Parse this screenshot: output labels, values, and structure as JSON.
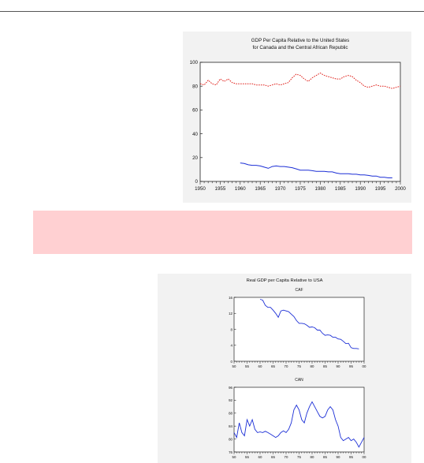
{
  "chart_data": [
    {
      "type": "line",
      "title": "GDP Per Capita Relative to the United States",
      "subtitle": "for Canada and the Central African Republic",
      "xlim": [
        1950,
        2000
      ],
      "ylim": [
        0,
        100
      ],
      "xticks": [
        1950,
        1955,
        1960,
        1965,
        1970,
        1975,
        1980,
        1985,
        1990,
        1995,
        2000
      ],
      "yticks": [
        0,
        20,
        40,
        60,
        80,
        100
      ],
      "grid": false,
      "colors": {
        "canada": "#e0201a",
        "caf": "#1c2fd6"
      },
      "series": [
        {
          "key": "canada",
          "style": "dotted",
          "x": [
            1950,
            1951,
            1952,
            1953,
            1954,
            1955,
            1956,
            1957,
            1958,
            1959,
            1960,
            1961,
            1962,
            1963,
            1964,
            1965,
            1966,
            1967,
            1968,
            1969,
            1970,
            1971,
            1972,
            1973,
            1974,
            1975,
            1976,
            1977,
            1978,
            1979,
            1980,
            1981,
            1982,
            1983,
            1984,
            1985,
            1986,
            1987,
            1988,
            1989,
            1990,
            1991,
            1992,
            1993,
            1994,
            1995,
            1996,
            1997,
            1998,
            1999,
            2000
          ],
          "y": [
            82,
            81,
            85,
            82,
            81,
            86,
            84,
            86,
            83,
            82,
            82,
            82,
            82,
            82,
            81,
            81,
            81,
            80,
            81,
            82,
            81,
            82,
            83,
            87,
            90,
            89,
            86,
            84,
            87,
            89,
            91,
            89,
            88,
            87,
            86,
            86,
            88,
            89,
            88,
            85,
            83,
            80,
            79,
            80,
            81,
            80,
            80,
            79,
            78,
            79,
            80
          ]
        },
        {
          "key": "caf",
          "style": "solid",
          "x": [
            1960,
            1961,
            1962,
            1963,
            1964,
            1965,
            1966,
            1967,
            1968,
            1969,
            1970,
            1971,
            1972,
            1973,
            1974,
            1975,
            1976,
            1977,
            1978,
            1979,
            1980,
            1981,
            1982,
            1983,
            1984,
            1985,
            1986,
            1987,
            1988,
            1989,
            1990,
            1991,
            1992,
            1993,
            1994,
            1995,
            1996,
            1997,
            1998
          ],
          "y": [
            15.5,
            15,
            14,
            13.5,
            13.5,
            13,
            12,
            11,
            12.5,
            13,
            12.5,
            12.5,
            12,
            11.5,
            10.5,
            9.5,
            9.5,
            9.5,
            9,
            8.5,
            8.5,
            8.5,
            8,
            8,
            7,
            6.5,
            6.5,
            6.5,
            6,
            6,
            5.5,
            5.5,
            5,
            4.5,
            4.5,
            3.5,
            3.5,
            3,
            3
          ]
        }
      ]
    },
    {
      "type": "line",
      "title": "Real GDP per Capita Relative to USA",
      "color": "#1c2fd6",
      "panels": [
        {
          "label": "CAF",
          "ylim": [
            0,
            16
          ],
          "yticks": [
            0,
            4,
            8,
            12,
            16
          ],
          "xlim": [
            1950,
            2000
          ],
          "xtick_labels": [
            "50",
            "55",
            "60",
            "65",
            "70",
            "75",
            "80",
            "85",
            "90",
            "95",
            "00"
          ],
          "x": [
            1960,
            1961,
            1962,
            1963,
            1964,
            1965,
            1966,
            1967,
            1968,
            1969,
            1970,
            1971,
            1972,
            1973,
            1974,
            1975,
            1976,
            1977,
            1978,
            1979,
            1980,
            1981,
            1982,
            1983,
            1984,
            1985,
            1986,
            1987,
            1988,
            1989,
            1990,
            1991,
            1992,
            1993,
            1994,
            1995,
            1996,
            1997,
            1998
          ],
          "y": [
            15.5,
            15.3,
            14,
            13.5,
            13.5,
            12.8,
            12,
            11,
            12.6,
            12.8,
            12.6,
            12.4,
            11.8,
            11.2,
            10.2,
            9.5,
            9.5,
            9.4,
            9,
            8.5,
            8.6,
            8.4,
            7.8,
            7.8,
            7,
            6.5,
            6.6,
            6.5,
            6,
            6,
            5.6,
            5.5,
            5,
            4.4,
            4.5,
            3.4,
            3.2,
            3.2,
            3.1
          ]
        },
        {
          "label": "CAN",
          "ylim": [
            76,
            96
          ],
          "yticks": [
            76,
            80,
            84,
            88,
            92,
            96
          ],
          "xlim": [
            1950,
            2000
          ],
          "xtick_labels": [
            "50",
            "55",
            "60",
            "65",
            "70",
            "75",
            "80",
            "85",
            "90",
            "95",
            "00"
          ],
          "x": [
            1950,
            1951,
            1952,
            1953,
            1954,
            1955,
            1956,
            1957,
            1958,
            1959,
            1960,
            1961,
            1962,
            1963,
            1964,
            1965,
            1966,
            1967,
            1968,
            1969,
            1970,
            1971,
            1972,
            1973,
            1974,
            1975,
            1976,
            1977,
            1978,
            1979,
            1980,
            1981,
            1982,
            1983,
            1984,
            1985,
            1986,
            1987,
            1988,
            1989,
            1990,
            1991,
            1992,
            1993,
            1994,
            1995,
            1996,
            1997,
            1998,
            1999,
            2000
          ],
          "y": [
            82,
            80.5,
            85,
            82,
            81,
            86,
            84,
            86,
            83,
            82,
            82.2,
            82,
            82.4,
            82,
            81.5,
            81,
            80.5,
            81,
            82,
            82.5,
            82,
            83,
            85,
            89,
            90.5,
            89,
            86,
            85,
            88,
            90,
            91.5,
            90,
            88.5,
            87,
            86.5,
            87,
            89,
            90,
            89,
            86,
            84,
            80.5,
            79.5,
            80,
            80.5,
            79.5,
            80,
            79,
            77.5,
            79,
            80.5
          ]
        }
      ]
    }
  ]
}
